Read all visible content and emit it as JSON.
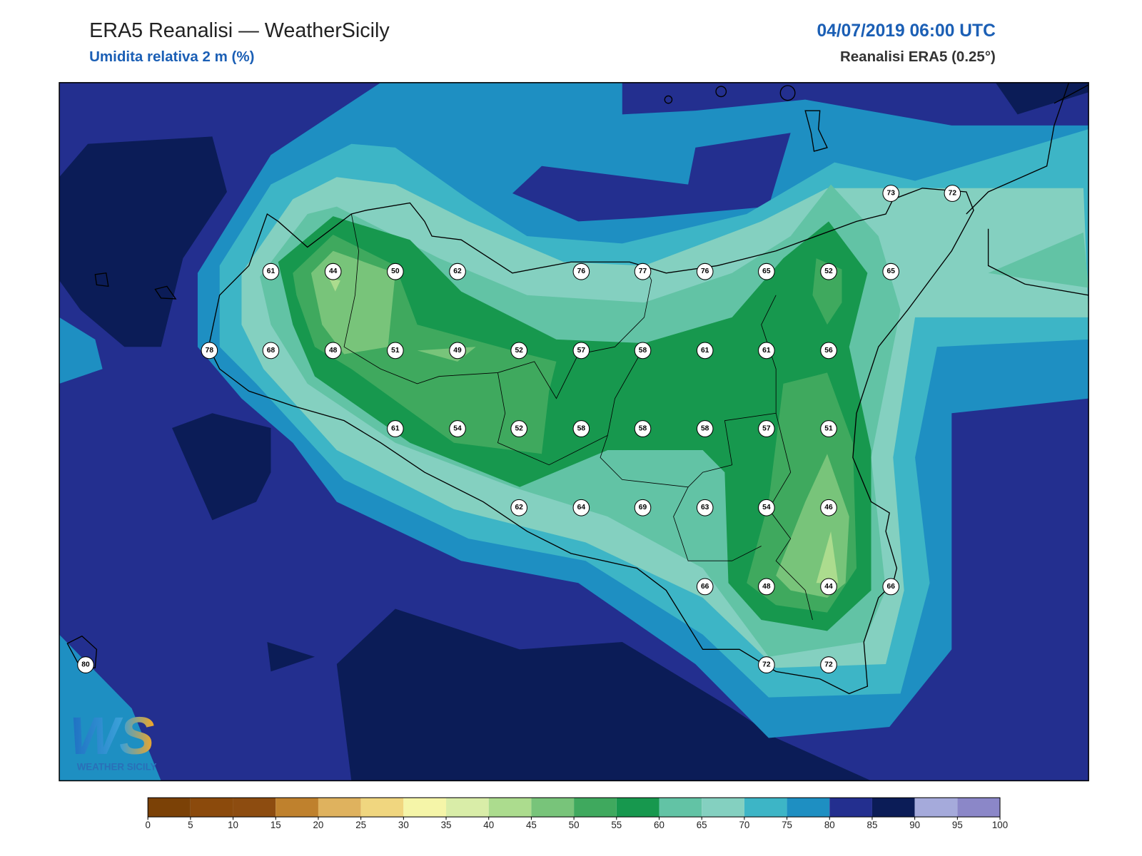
{
  "header": {
    "title": "ERA5 Reanalisi — WeatherSicily",
    "subtitle": "Umidita relativa 2 m (%)",
    "datetime": "04/07/2019 06:00 UTC",
    "source": "Reanalisi ERA5 (0.25°)"
  },
  "stations": [
    73,
    72,
    61,
    44,
    50,
    62,
    76,
    77,
    76,
    65,
    52,
    65,
    78,
    68,
    48,
    51,
    49,
    52,
    57,
    58,
    61,
    61,
    56,
    61,
    54,
    52,
    58,
    58,
    58,
    57,
    51,
    62,
    64,
    69,
    63,
    54,
    46,
    66,
    48,
    44,
    66,
    72,
    72,
    80
  ],
  "logo": {
    "mark": "WS",
    "text": "WEATHER SICILY"
  },
  "colorbar": {
    "ticks": [
      0,
      5,
      10,
      15,
      20,
      25,
      30,
      35,
      40,
      45,
      50,
      55,
      60,
      65,
      70,
      75,
      80,
      85,
      90,
      95,
      100
    ],
    "colors": [
      "#7b4106",
      "#8b4a0c",
      "#8d4c10",
      "#bf812d",
      "#dfb25e",
      "#f0d67f",
      "#f5f5a8",
      "#d9eda8",
      "#acdc8e",
      "#78c47a",
      "#3fa95e",
      "#17984e",
      "#62c3a5",
      "#84d0c0",
      "#3db5c6",
      "#1e8fc2",
      "#232f8f",
      "#0b1c57",
      "#a5aadb",
      "#8b87c8"
    ]
  }
}
